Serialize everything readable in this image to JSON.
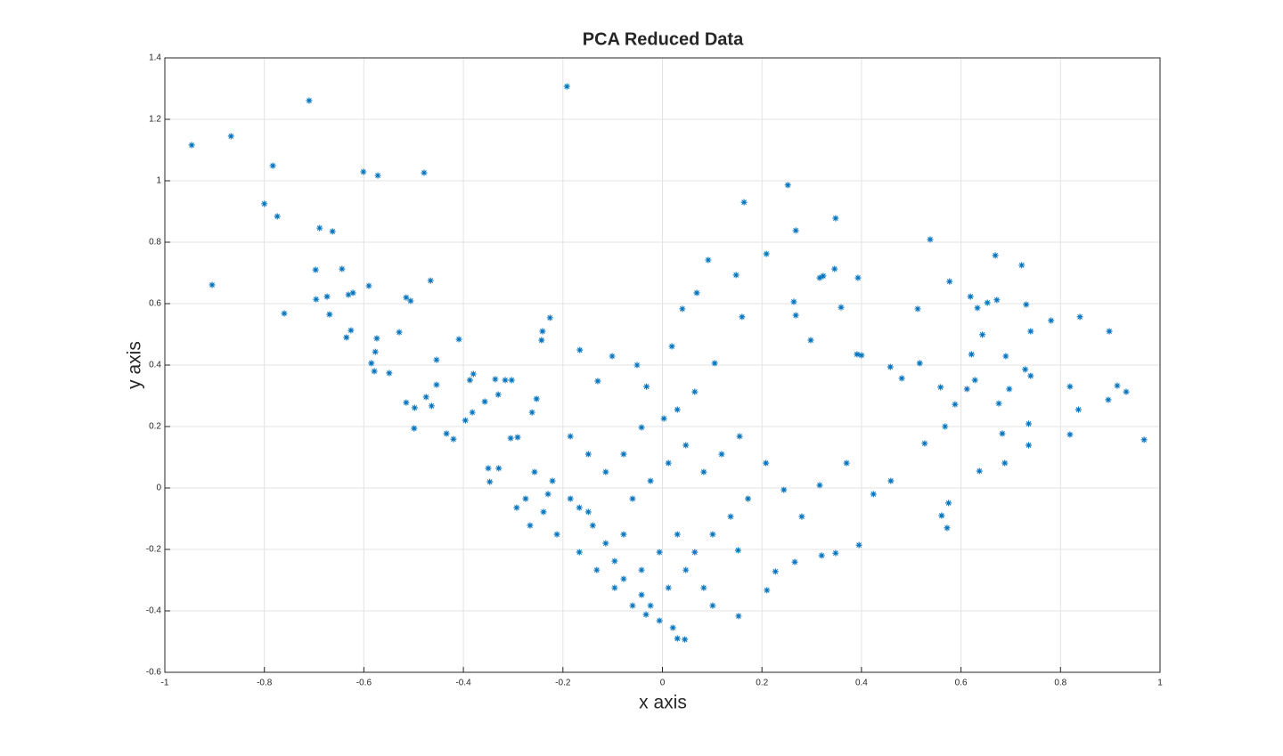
{
  "chart_data": {
    "type": "scatter",
    "title": "PCA Reduced Data",
    "x_label": "x axis",
    "y_label": "y axis",
    "xlim": [
      -1,
      1
    ],
    "ylim": [
      -0.6,
      1.4
    ],
    "xticks": [
      -1,
      -0.8,
      -0.6,
      -0.4,
      -0.2,
      0,
      0.2,
      0.4,
      0.6,
      0.8,
      1
    ],
    "yticks": [
      -0.6,
      -0.4,
      -0.2,
      0,
      0.2,
      0.4,
      0.6,
      0.8,
      1,
      1.2,
      1.4
    ],
    "grid": true,
    "color": "#0072bd",
    "x": [
      -0.946,
      -0.867,
      -0.71,
      -0.192,
      -0.783,
      -0.8,
      -0.774,
      -0.905,
      -0.76,
      -0.689,
      -0.663,
      -0.697,
      -0.696,
      -0.674,
      -0.669,
      -0.644,
      -0.631,
      -0.622,
      -0.635,
      -0.626,
      -0.601,
      -0.572,
      -0.479,
      -0.59,
      -0.515,
      -0.506,
      -0.466,
      -0.574,
      -0.577,
      -0.585,
      -0.579,
      -0.549,
      -0.529,
      -0.454,
      -0.409,
      -0.515,
      -0.498,
      -0.475,
      -0.464,
      -0.454,
      -0.499,
      -0.434,
      -0.42,
      -0.387,
      -0.38,
      -0.396,
      -0.382,
      -0.357,
      -0.336,
      -0.316,
      -0.303,
      -0.33,
      -0.35,
      -0.347,
      -0.329,
      -0.305,
      -0.291,
      -0.262,
      -0.253,
      -0.241,
      -0.243,
      -0.226,
      -0.166,
      -0.13,
      -0.101,
      -0.051,
      -0.032,
      0.019,
      0.04,
      0.069,
      0.092,
      0.105,
      0.148,
      0.164,
      0.16,
      0.209,
      0.252,
      0.268,
      0.264,
      0.268,
      0.298,
      0.316,
      0.323,
      0.346,
      0.348,
      0.359,
      0.393,
      0.391,
      0.4,
      0.538,
      0.513,
      0.577,
      0.517,
      0.481,
      0.458,
      0.559,
      0.588,
      0.568,
      0.527,
      0.619,
      0.633,
      0.643,
      0.621,
      0.628,
      0.612,
      0.653,
      0.672,
      0.669,
      0.722,
      0.731,
      0.74,
      0.69,
      0.729,
      0.74,
      0.697,
      0.676,
      0.683,
      0.736,
      0.736,
      0.688,
      0.637,
      0.781,
      0.839,
      0.898,
      0.914,
      0.932,
      0.896,
      0.819,
      0.836,
      0.819,
      0.968,
      0.561,
      0.572,
      0.575,
      0.395,
      0.348,
      0.32,
      0.227,
      0.21,
      0.266,
      0.153,
      0.152,
      0.03,
      0.045,
      0.021,
      -0.006,
      -0.024,
      -0.042,
      -0.078,
      -0.096,
      -0.114,
      -0.14,
      -0.167,
      -0.185,
      -0.221,
      -0.257,
      -0.275,
      -0.239,
      -0.212,
      -0.167,
      -0.132,
      -0.096,
      -0.06,
      -0.033,
      0.012,
      0.047,
      0.065,
      0.101,
      0.137,
      0.172,
      0.03,
      -0.006,
      -0.042,
      -0.078,
      -0.06,
      -0.024,
      0.012,
      0.047,
      -0.042,
      -0.078,
      -0.114,
      -0.149,
      -0.185,
      0.083,
      0.119,
      0.155,
      0.208,
      0.244,
      0.28,
      0.316,
      0.37,
      0.424,
      0.459,
      0.03,
      0.065,
      0.003,
      0.083,
      0.101,
      -0.149,
      -0.23,
      -0.293,
      -0.266
    ],
    "values": [
      1.116,
      1.145,
      1.261,
      1.307,
      1.049,
      0.925,
      0.884,
      0.661,
      0.568,
      0.846,
      0.835,
      0.71,
      0.614,
      0.623,
      0.565,
      0.713,
      0.629,
      0.635,
      0.49,
      0.513,
      1.029,
      1.017,
      1.026,
      0.658,
      0.62,
      0.609,
      0.675,
      0.487,
      0.443,
      0.406,
      0.38,
      0.374,
      0.507,
      0.417,
      0.484,
      0.278,
      0.261,
      0.296,
      0.267,
      0.336,
      0.194,
      0.177,
      0.159,
      0.351,
      0.371,
      0.22,
      0.246,
      0.281,
      0.354,
      0.351,
      0.351,
      0.304,
      0.064,
      0.02,
      0.064,
      0.162,
      0.165,
      0.246,
      0.29,
      0.51,
      0.481,
      0.554,
      0.449,
      0.348,
      0.429,
      0.4,
      0.33,
      0.461,
      0.583,
      0.635,
      0.742,
      0.406,
      0.693,
      0.93,
      0.557,
      0.762,
      0.986,
      0.838,
      0.606,
      0.562,
      0.481,
      0.684,
      0.69,
      0.713,
      0.878,
      0.588,
      0.684,
      0.435,
      0.432,
      0.809,
      0.583,
      0.672,
      0.406,
      0.357,
      0.394,
      0.328,
      0.272,
      0.2,
      0.145,
      0.623,
      0.586,
      0.499,
      0.435,
      0.351,
      0.322,
      0.603,
      0.612,
      0.757,
      0.725,
      0.597,
      0.51,
      0.429,
      0.386,
      0.365,
      0.322,
      0.275,
      0.177,
      0.209,
      0.139,
      0.081,
      0.055,
      0.545,
      0.557,
      0.51,
      0.333,
      0.313,
      0.287,
      0.33,
      0.255,
      0.174,
      0.157,
      -0.09,
      -0.13,
      -0.049,
      -0.186,
      -0.212,
      -0.22,
      -0.272,
      -0.333,
      -0.241,
      -0.417,
      -0.203,
      -0.49,
      -0.493,
      -0.455,
      -0.432,
      -0.383,
      -0.348,
      -0.296,
      -0.238,
      -0.18,
      -0.122,
      -0.064,
      -0.035,
      0.023,
      0.052,
      -0.035,
      -0.078,
      -0.151,
      -0.209,
      -0.267,
      -0.325,
      -0.383,
      -0.412,
      -0.325,
      -0.267,
      -0.209,
      -0.151,
      -0.093,
      -0.035,
      -0.151,
      -0.209,
      -0.267,
      -0.151,
      -0.035,
      0.023,
      0.081,
      0.139,
      0.197,
      0.11,
      0.052,
      0.11,
      0.168,
      0.052,
      0.11,
      0.168,
      0.081,
      -0.006,
      -0.093,
      0.009,
      0.081,
      -0.02,
      0.023,
      0.255,
      0.313,
      0.226,
      -0.325,
      -0.383,
      -0.078,
      -0.02,
      -0.064,
      -0.122
    ]
  }
}
